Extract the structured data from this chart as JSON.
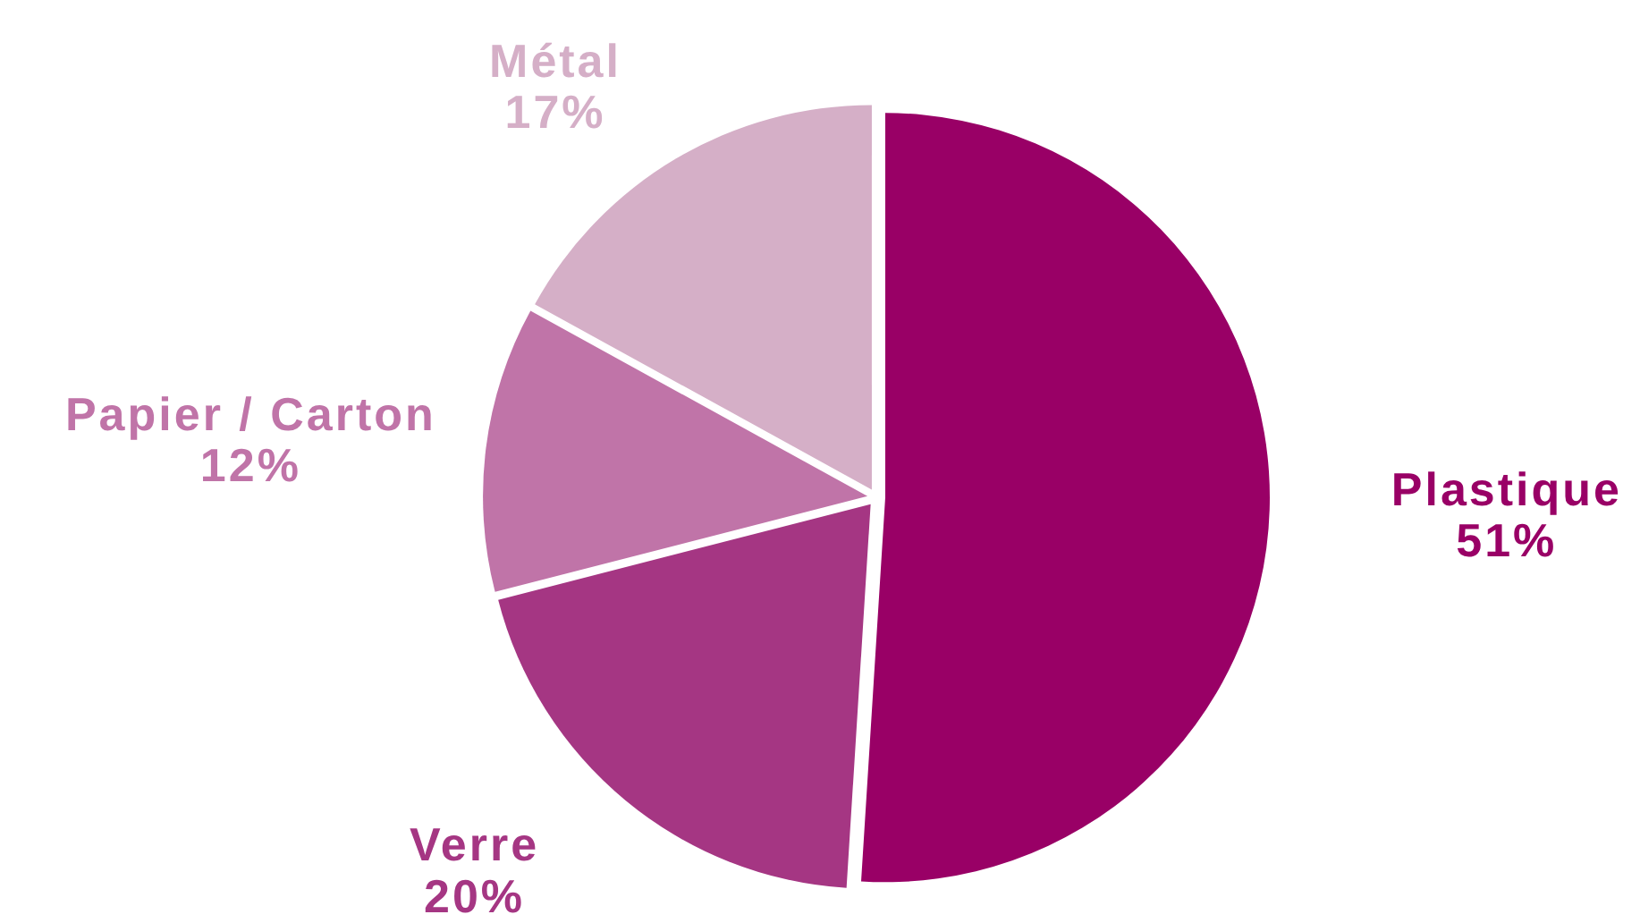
{
  "chart_data": {
    "type": "pie",
    "categories": [
      "Plastique",
      "Verre",
      "Papier / Carton",
      "Métal"
    ],
    "values": [
      51,
      20,
      12,
      17
    ],
    "colors": [
      "#990066",
      "#a53683",
      "#c074a8",
      "#d5afc7"
    ],
    "value_labels": [
      "51%",
      "20%",
      "12%",
      "17%"
    ]
  }
}
